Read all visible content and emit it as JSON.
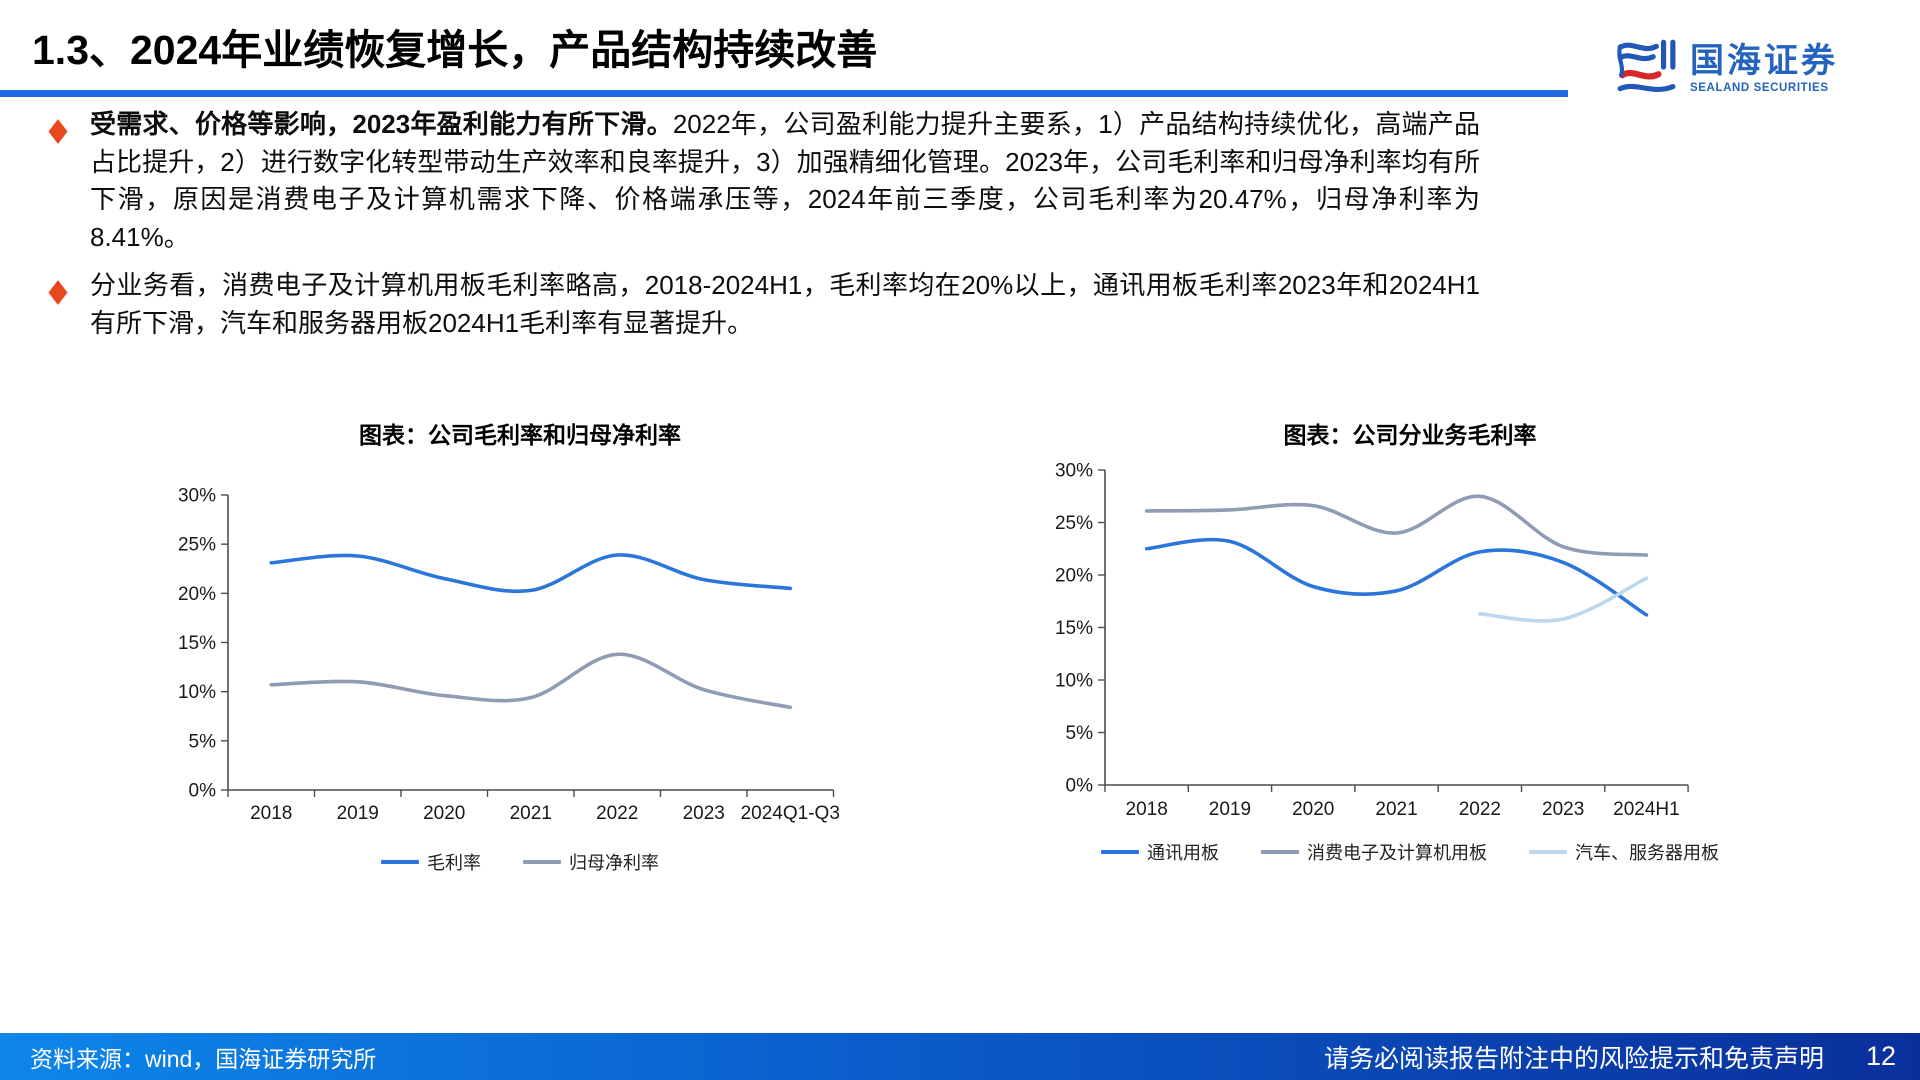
{
  "header": {
    "title": "1.3、2024年业绩恢复增长，产品结构持续改善",
    "logo": {
      "cn": "国海证券",
      "en": "SEALAND SECURITIES"
    }
  },
  "bullets": [
    {
      "lead": "受需求、价格等影响，2023年盈利能力有所下滑。",
      "text": "2022年，公司盈利能力提升主要系，1）产品结构持续优化，高端产品占比提升，2）进行数字化转型带动生产效率和良率提升，3）加强精细化管理。2023年，公司毛利率和归母净利率均有所下滑，原因是消费电子及计算机需求下降、价格端承压等，2024年前三季度，公司毛利率为20.47%，归母净利率为8.41%。"
    },
    {
      "lead": "",
      "text": "分业务看，消费电子及计算机用板毛利率略高，2018-2024H1，毛利率均在20%以上，通讯用板毛利率2023年和2024H1有所下滑，汽车和服务器用板2024H1毛利率有显著提升。"
    }
  ],
  "chart_data": [
    {
      "type": "line",
      "title": "图表：公司毛利率和归母净利率",
      "categories": [
        "2018",
        "2019",
        "2020",
        "2021",
        "2022",
        "2023",
        "2024Q1-Q3"
      ],
      "series": [
        {
          "name": "毛利率",
          "color": "#2b76db",
          "values": [
            23.1,
            23.8,
            21.5,
            20.3,
            23.9,
            21.4,
            20.5
          ]
        },
        {
          "name": "归母净利率",
          "color": "#8e9db3",
          "values": [
            10.7,
            11.0,
            9.6,
            9.4,
            13.8,
            10.2,
            8.4
          ]
        }
      ],
      "xlabel": "",
      "ylabel": "",
      "ylim": [
        0,
        30
      ],
      "ytick_step": 5,
      "ytick_suffix": "%",
      "grid": false,
      "legend_position": "bottom",
      "smoothed": true
    },
    {
      "type": "line",
      "title": "图表：公司分业务毛利率",
      "categories": [
        "2018",
        "2019",
        "2020",
        "2021",
        "2022",
        "2023",
        "2024H1"
      ],
      "series": [
        {
          "name": "通讯用板",
          "color": "#2b76db",
          "values": [
            22.5,
            23.2,
            18.9,
            18.5,
            22.2,
            21.2,
            16.2
          ]
        },
        {
          "name": "消费电子及计算机用板",
          "color": "#8e9db3",
          "values": [
            26.1,
            26.2,
            26.6,
            24.0,
            27.5,
            22.7,
            21.9
          ]
        },
        {
          "name": "汽车、服务器用板",
          "color": "#bdd7ee",
          "values": [
            null,
            null,
            null,
            null,
            16.3,
            15.8,
            19.7
          ]
        }
      ],
      "xlabel": "",
      "ylabel": "",
      "ylim": [
        0,
        30
      ],
      "ytick_step": 5,
      "ytick_suffix": "%",
      "grid": false,
      "legend_position": "bottom",
      "smoothed": true
    }
  ],
  "footer": {
    "source": "资料来源：wind，国海证券研究所",
    "disclaimer": "请务必阅读报告附注中的风险提示和免责声明",
    "page": "12"
  },
  "colors": {
    "accent_blue": "#1e6ae3",
    "bullet_orange": "#e8481c",
    "line_blue": "#2b76db",
    "line_gray": "#8e9db3",
    "line_lightblue": "#bdd7ee",
    "logo_blue": "#2463be",
    "logo_red": "#d6252b",
    "footer_gradient_left": "#0d86e9",
    "footer_gradient_right": "#0a2f9b"
  }
}
